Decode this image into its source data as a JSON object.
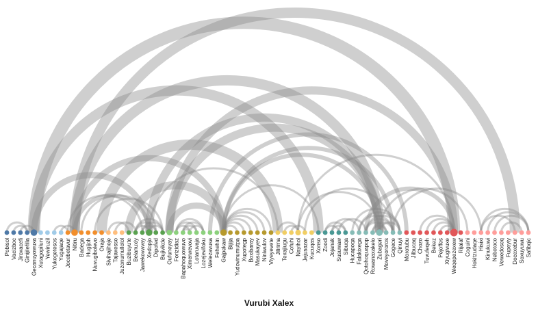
{
  "title": "Vurubi Xalex",
  "chart_data": {
    "type": "arc",
    "title": "Vurubi Xalex",
    "arc_color": "#888888",
    "arc_opacity": 0.4,
    "groups": {
      "1": "#4e79a7",
      "2": "#a0cbe8",
      "3": "#f28e2b",
      "4": "#ffbe7d",
      "5": "#59a14f",
      "6": "#8cd17d",
      "7": "#b6992d",
      "8": "#f1ce63",
      "9": "#499894",
      "10": "#86bcb6",
      "11": "#e15759",
      "12": "#ff9d9a"
    },
    "nodes": [
      {
        "name": "Pobisol",
        "group": 1
      },
      {
        "name": "Vacizboc",
        "group": 1
      },
      {
        "name": "Jiroxacefi",
        "group": 1
      },
      {
        "name": "Ginijilefilla",
        "group": 1
      },
      {
        "name": "Gecanuyowuxa",
        "group": 1
      },
      {
        "name": "Xutagopiluni",
        "group": 2
      },
      {
        "name": "Yewiruzil",
        "group": 2
      },
      {
        "name": "Yukogetesos",
        "group": 2
      },
      {
        "name": "Yugajaqe",
        "group": 2
      },
      {
        "name": "Jocebetavur",
        "group": 3
      },
      {
        "name": "Nitiru",
        "group": 3
      },
      {
        "name": "Badega",
        "group": 3
      },
      {
        "name": "Hugijoh",
        "group": 3
      },
      {
        "name": "Nuvugibolevo",
        "group": 3
      },
      {
        "name": "Oraja",
        "group": 3
      },
      {
        "name": "Sivihajihoje",
        "group": 4
      },
      {
        "name": "Tajaxesso",
        "group": 4
      },
      {
        "name": "Juzonumullolol",
        "group": 4
      },
      {
        "name": "Buzibuyute",
        "group": 5
      },
      {
        "name": "Belanuxiy",
        "group": 5
      },
      {
        "name": "Jawekovwvay",
        "group": 5
      },
      {
        "name": "Xedopjo",
        "group": 5
      },
      {
        "name": "Dipofed",
        "group": 5
      },
      {
        "name": "Bujivikde",
        "group": 5
      },
      {
        "name": "Oufuneyay",
        "group": 6
      },
      {
        "name": "Forizidiaz",
        "group": 6
      },
      {
        "name": "Bapahoquowuvo",
        "group": 6
      },
      {
        "name": "Ximerwevovi",
        "group": 6
      },
      {
        "name": "Lotaruvaja",
        "group": 6
      },
      {
        "name": "Lozejevifoku",
        "group": 6
      },
      {
        "name": "Welezavusa",
        "group": 6
      },
      {
        "name": "Fehehin",
        "group": 6
      },
      {
        "name": "Gajpekaw",
        "group": 7
      },
      {
        "name": "Bijija",
        "group": 7
      },
      {
        "name": "Yudovinumutpa",
        "group": 7
      },
      {
        "name": "Xupotegp",
        "group": 7
      },
      {
        "name": "Boxibaray",
        "group": 7
      },
      {
        "name": "Masukayev",
        "group": 7
      },
      {
        "name": "Niniwulov",
        "group": 7
      },
      {
        "name": "Viyeyevete",
        "group": 7
      },
      {
        "name": "Jilirima",
        "group": 8
      },
      {
        "name": "Texajiugu",
        "group": 8
      },
      {
        "name": "Cofuhi",
        "group": 8
      },
      {
        "name": "Nayihol",
        "group": 8
      },
      {
        "name": "Jejusazar",
        "group": 8
      },
      {
        "name": "Kucuqas",
        "group": 8
      },
      {
        "name": "Xonso",
        "group": 9
      },
      {
        "name": "Zoodi",
        "group": 9
      },
      {
        "name": "Jojanak",
        "group": 9
      },
      {
        "name": "Susuwaw",
        "group": 9
      },
      {
        "name": "Sibuqa",
        "group": 9
      },
      {
        "name": "Hucapoqa",
        "group": 10
      },
      {
        "name": "Falakixega",
        "group": 10
      },
      {
        "name": "Qotohoquapop",
        "group": 10
      },
      {
        "name": "Rowanaxakelo",
        "group": 10
      },
      {
        "name": "Zubageri",
        "group": 10
      },
      {
        "name": "Moveyororos",
        "group": 10
      },
      {
        "name": "Gogece",
        "group": 10
      },
      {
        "name": "Qinuyi",
        "group": 10
      },
      {
        "name": "Morotubu",
        "group": 11
      },
      {
        "name": "Jilbucaq",
        "group": 11
      },
      {
        "name": "Chozo",
        "group": 11
      },
      {
        "name": "Tuvufeqeh",
        "group": 11
      },
      {
        "name": "Bekez",
        "group": 11
      },
      {
        "name": "Pejoffes",
        "group": 11
      },
      {
        "name": "Xiyugivuxe",
        "group": 11
      },
      {
        "name": "Weqepezexew",
        "group": 11
      },
      {
        "name": "Rijalaf",
        "group": 11
      },
      {
        "name": "Coguini",
        "group": 12
      },
      {
        "name": "Hokitzudaqe",
        "group": 12
      },
      {
        "name": "Hisixi",
        "group": 12
      },
      {
        "name": "Kinukuwi",
        "group": 12
      },
      {
        "name": "Nebotoco",
        "group": 12
      },
      {
        "name": "Vewedoseq",
        "group": 12
      },
      {
        "name": "Fupeyiy",
        "group": 12
      },
      {
        "name": "Docexebur",
        "group": 12
      },
      {
        "name": "Soxuyuwu",
        "group": 12
      },
      {
        "name": "Safibqic",
        "group": 12
      }
    ],
    "links": [
      {
        "source": 4,
        "target": 66,
        "value": 6
      },
      {
        "source": 4,
        "target": 46,
        "value": 5
      },
      {
        "source": 10,
        "target": 75,
        "value": 5
      },
      {
        "source": 10,
        "target": 55,
        "value": 5
      },
      {
        "source": 10,
        "target": 32,
        "value": 3
      },
      {
        "source": 10,
        "target": 21,
        "value": 2
      },
      {
        "source": 24,
        "target": 66,
        "value": 4
      },
      {
        "source": 24,
        "target": 55,
        "value": 4
      },
      {
        "source": 24,
        "target": 32,
        "value": 3
      },
      {
        "source": 21,
        "target": 55,
        "value": 4
      },
      {
        "source": 21,
        "target": 40,
        "value": 1
      },
      {
        "source": 14,
        "target": 40,
        "value": 5
      },
      {
        "source": 18,
        "target": 32,
        "value": 4
      },
      {
        "source": 4,
        "target": 21,
        "value": 3
      },
      {
        "source": 30,
        "target": 59,
        "value": 2
      },
      {
        "source": 32,
        "target": 57,
        "value": 2
      },
      {
        "source": 32,
        "target": 55,
        "value": 2
      },
      {
        "source": 32,
        "target": 46,
        "value": 1
      },
      {
        "source": 43,
        "target": 66,
        "value": 1
      },
      {
        "source": 43,
        "target": 55,
        "value": 1
      },
      {
        "source": 44,
        "target": 57,
        "value": 1
      },
      {
        "source": 53,
        "target": 66,
        "value": 2
      },
      {
        "source": 9,
        "target": 20,
        "value": 1
      },
      {
        "source": 11,
        "target": 22,
        "value": 1
      },
      {
        "source": 13,
        "target": 23,
        "value": 1
      },
      {
        "source": 55,
        "target": 68,
        "value": 1
      },
      {
        "source": 57,
        "target": 70,
        "value": 1
      },
      {
        "source": 48,
        "target": 52,
        "value": 1
      },
      {
        "source": 49,
        "target": 53,
        "value": 1
      },
      {
        "source": 62,
        "target": 66,
        "value": 1
      },
      {
        "source": 63,
        "target": 66,
        "value": 1
      },
      {
        "source": 64,
        "target": 66,
        "value": 1
      },
      {
        "source": 65,
        "target": 66,
        "value": 1
      },
      {
        "source": 61,
        "target": 66,
        "value": 1
      },
      {
        "source": 0,
        "target": 3,
        "value": 1
      },
      {
        "source": 1,
        "target": 3,
        "value": 1
      },
      {
        "source": 2,
        "target": 4,
        "value": 1
      },
      {
        "source": 7,
        "target": 9,
        "value": 1
      },
      {
        "source": 8,
        "target": 10,
        "value": 1
      },
      {
        "source": 15,
        "target": 18,
        "value": 1
      },
      {
        "source": 16,
        "target": 19,
        "value": 1
      },
      {
        "source": 19,
        "target": 23,
        "value": 1
      },
      {
        "source": 19,
        "target": 22,
        "value": 1
      },
      {
        "source": 20,
        "target": 23,
        "value": 1
      },
      {
        "source": 19,
        "target": 21,
        "value": 1
      },
      {
        "source": 20,
        "target": 22,
        "value": 1
      },
      {
        "source": 21,
        "target": 23,
        "value": 1
      },
      {
        "source": 25,
        "target": 29,
        "value": 1
      },
      {
        "source": 25,
        "target": 28,
        "value": 1
      },
      {
        "source": 26,
        "target": 29,
        "value": 1
      },
      {
        "source": 25,
        "target": 27,
        "value": 1
      },
      {
        "source": 26,
        "target": 28,
        "value": 1
      },
      {
        "source": 27,
        "target": 29,
        "value": 1
      },
      {
        "source": 26,
        "target": 27,
        "value": 1
      },
      {
        "source": 32,
        "target": 39,
        "value": 1
      },
      {
        "source": 32,
        "target": 38,
        "value": 1
      },
      {
        "source": 32,
        "target": 37,
        "value": 1
      },
      {
        "source": 32,
        "target": 36,
        "value": 1
      },
      {
        "source": 32,
        "target": 35,
        "value": 1
      },
      {
        "source": 32,
        "target": 34,
        "value": 1
      },
      {
        "source": 40,
        "target": 43,
        "value": 1
      },
      {
        "source": 41,
        "target": 43,
        "value": 1
      },
      {
        "source": 42,
        "target": 44,
        "value": 1
      },
      {
        "source": 47,
        "target": 50,
        "value": 1
      },
      {
        "source": 48,
        "target": 50,
        "value": 1
      },
      {
        "source": 47,
        "target": 49,
        "value": 1
      },
      {
        "source": 51,
        "target": 58,
        "value": 1
      },
      {
        "source": 52,
        "target": 58,
        "value": 1
      },
      {
        "source": 52,
        "target": 57,
        "value": 1
      },
      {
        "source": 53,
        "target": 58,
        "value": 1
      },
      {
        "source": 53,
        "target": 57,
        "value": 1
      },
      {
        "source": 53,
        "target": 56,
        "value": 1
      },
      {
        "source": 54,
        "target": 57,
        "value": 1
      },
      {
        "source": 54,
        "target": 56,
        "value": 1
      },
      {
        "source": 55,
        "target": 58,
        "value": 1
      },
      {
        "source": 70,
        "target": 78,
        "value": 1
      },
      {
        "source": 70,
        "target": 77,
        "value": 1
      },
      {
        "source": 71,
        "target": 78,
        "value": 1
      },
      {
        "source": 71,
        "target": 77,
        "value": 1
      },
      {
        "source": 72,
        "target": 78,
        "value": 1
      },
      {
        "source": 72,
        "target": 77,
        "value": 1
      },
      {
        "source": 73,
        "target": 78,
        "value": 1
      },
      {
        "source": 73,
        "target": 76,
        "value": 1
      },
      {
        "source": 74,
        "target": 78,
        "value": 1
      },
      {
        "source": 75,
        "target": 78,
        "value": 1
      },
      {
        "source": 70,
        "target": 75,
        "value": 1
      }
    ],
    "node_sizes": {
      "4": 2,
      "10": 2,
      "21": 2,
      "24": 1.5,
      "32": 2,
      "43": 1.5,
      "55": 2,
      "66": 2.5
    }
  }
}
